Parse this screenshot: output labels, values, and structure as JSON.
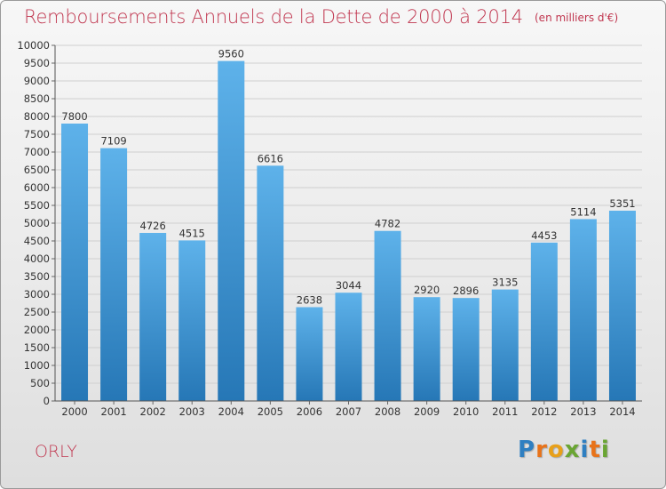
{
  "title": "Remboursements Annuels de la Dette de 2000 à 2014",
  "subtitle": "(en milliers d'€)",
  "town": "ORLY",
  "logo": {
    "text": "Proxiti",
    "letters": [
      {
        "ch": "P",
        "color": "#2f7fc1"
      },
      {
        "ch": "r",
        "color": "#e8731a"
      },
      {
        "ch": "o",
        "color": "#e8a01a"
      },
      {
        "ch": "x",
        "color": "#6aa533"
      },
      {
        "ch": "i",
        "color": "#2f7fc1"
      },
      {
        "ch": "t",
        "color": "#e8731a"
      },
      {
        "ch": "i",
        "color": "#6aa533"
      }
    ]
  },
  "colors": {
    "bar_top": "#5eb2ea",
    "bar_bottom": "#2677b6",
    "accent": "#c0364f"
  },
  "chart_data": {
    "type": "bar",
    "categories": [
      "2000",
      "2001",
      "2002",
      "2003",
      "2004",
      "2005",
      "2006",
      "2007",
      "2008",
      "2009",
      "2010",
      "2011",
      "2012",
      "2013",
      "2014"
    ],
    "values": [
      7800,
      7109,
      4726,
      4515,
      9560,
      6616,
      2638,
      3044,
      4782,
      2920,
      2896,
      3135,
      4453,
      5114,
      5351
    ],
    "ylim": [
      0,
      10000
    ],
    "ytick_step": 500,
    "grid": true,
    "xlabel": "",
    "ylabel": ""
  }
}
